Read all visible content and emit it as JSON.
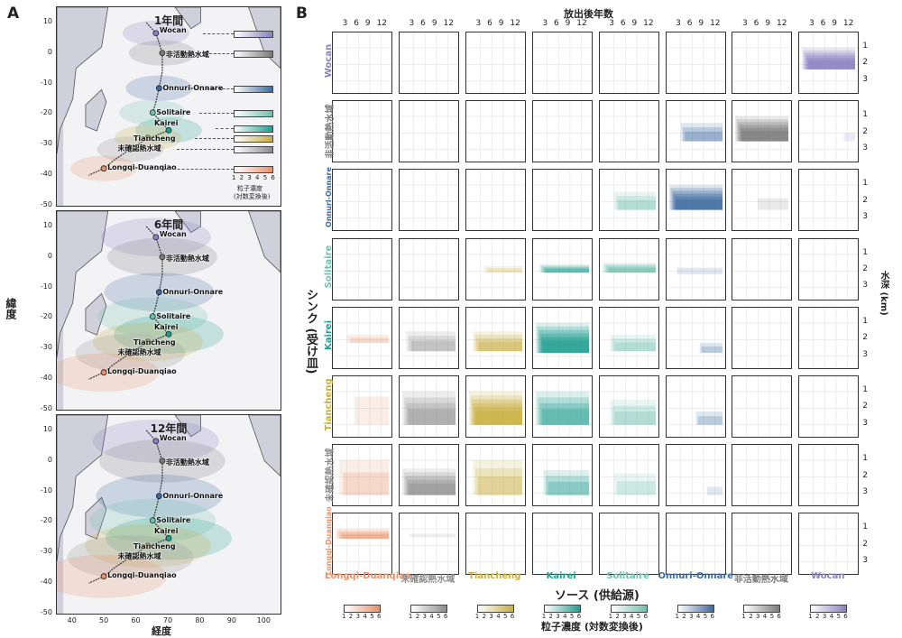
{
  "panel_a_letter": "A",
  "panel_b_letter": "B",
  "maps": [
    {
      "title": "1年間"
    },
    {
      "title": "6年間"
    },
    {
      "title": "12年間"
    }
  ],
  "map_yticks": [
    "10",
    "0",
    "-10",
    "-20",
    "-30",
    "-40",
    "-50"
  ],
  "map_xticks": [
    "40",
    "50",
    "60",
    "70",
    "80",
    "90",
    "100"
  ],
  "map_ylabel": "緯度",
  "map_xlabel": "経度",
  "sites": [
    "Wocan",
    "非活動熱水域",
    "Onnuri-Onnare",
    "Solitaire",
    "Kairei",
    "Tiancheng",
    "未確認熱水域",
    "Longqi-Duanqiao"
  ],
  "map_legend": {
    "ticks": "1 2 3 4 5 6",
    "label_line1": "粒子濃度",
    "label_line2": "(対数変換後)"
  },
  "colors": {
    "Longqi-Duanqiao": "#e8906a",
    "未確認熱水域": "#8c8c8c",
    "Tiancheng": "#c9ae3e",
    "Kairei": "#1f9e8f",
    "Solitaire": "#6fc0ad",
    "Onnuri-Onnare": "#3b6aa0",
    "非活動熱水域": "#7a7a7a",
    "Wocan": "#8a7fc0"
  },
  "panel_b": {
    "top_title": "放出後年数",
    "top_ticks": [
      "3",
      "6",
      "9",
      "12"
    ],
    "depth_title": "水深 (km)",
    "depth_ticks": [
      "1",
      "2",
      "3"
    ],
    "sink_title": "シンク (受け皿)",
    "source_title": "ソース (供給源)",
    "cbar_title": "粒子濃度 (対数変換後)",
    "cbar_ticks": [
      "1",
      "2",
      "3",
      "4",
      "5",
      "6"
    ]
  },
  "chart_data": {
    "type": "heatmap",
    "x_label": "放出後年数",
    "y_label": "水深 (km)",
    "x_ticks": [
      3,
      6,
      9,
      12
    ],
    "y_ticks": [
      1,
      2,
      3
    ],
    "sources": [
      "Longqi-Duanqiao",
      "未確認熱水域",
      "Tiancheng",
      "Kairei",
      "Solitaire",
      "Onnuri-Onnare",
      "非活動熱水域",
      "Wocan"
    ],
    "sinks": [
      "Wocan",
      "非活動熱水域",
      "Onnuri-Onnare",
      "Solitaire",
      "Kairei",
      "Tiancheng",
      "未確認熱水域",
      "Longqi-Duanqiao"
    ],
    "cells": [
      {
        "sink": "Wocan",
        "source": "Wocan",
        "start_year": 0,
        "depth_top_km": 1.0,
        "depth_bottom_km": 2.3,
        "max_conc": 6
      },
      {
        "sink": "非活動熱水域",
        "source": "Onnuri-Onnare",
        "start_year": 3,
        "depth_top_km": 1.4,
        "depth_bottom_km": 2.5,
        "max_conc": 3
      },
      {
        "sink": "非活動熱水域",
        "source": "非活動熱水域",
        "start_year": 0,
        "depth_top_km": 1.0,
        "depth_bottom_km": 2.5,
        "max_conc": 6
      },
      {
        "sink": "非活動熱水域",
        "source": "Wocan",
        "start_year": 11,
        "depth_top_km": 2.0,
        "depth_bottom_km": 2.5,
        "max_conc": 1
      },
      {
        "sink": "Onnuri-Onnare",
        "source": "Solitaire",
        "start_year": 3,
        "depth_top_km": 1.4,
        "depth_bottom_km": 2.5,
        "max_conc": 3
      },
      {
        "sink": "Onnuri-Onnare",
        "source": "Onnuri-Onnare",
        "start_year": 0,
        "depth_top_km": 1.0,
        "depth_bottom_km": 2.5,
        "max_conc": 6
      },
      {
        "sink": "Onnuri-Onnare",
        "source": "非活動熱水域",
        "start_year": 6,
        "depth_top_km": 1.8,
        "depth_bottom_km": 2.5,
        "max_conc": 1
      },
      {
        "sink": "Solitaire",
        "source": "Tiancheng",
        "start_year": 4,
        "depth_top_km": 1.7,
        "depth_bottom_km": 2.1,
        "max_conc": 2
      },
      {
        "sink": "Solitaire",
        "source": "Kairei",
        "start_year": 1,
        "depth_top_km": 1.6,
        "depth_bottom_km": 2.1,
        "max_conc": 4
      },
      {
        "sink": "Solitaire",
        "source": "Solitaire",
        "start_year": 0,
        "depth_top_km": 1.5,
        "depth_bottom_km": 2.1,
        "max_conc": 5
      },
      {
        "sink": "Solitaire",
        "source": "Onnuri-Onnare",
        "start_year": 2,
        "depth_top_km": 1.8,
        "depth_bottom_km": 2.2,
        "max_conc": 1
      },
      {
        "sink": "Kairei",
        "source": "Longqi-Duanqiao",
        "start_year": 3,
        "depth_top_km": 1.7,
        "depth_bottom_km": 2.2,
        "max_conc": 2
      },
      {
        "sink": "Kairei",
        "source": "未確認熱水域",
        "start_year": 1,
        "depth_top_km": 1.5,
        "depth_bottom_km": 2.7,
        "max_conc": 3
      },
      {
        "sink": "Kairei",
        "source": "Tiancheng",
        "start_year": 1,
        "depth_top_km": 1.5,
        "depth_bottom_km": 2.7,
        "max_conc": 4
      },
      {
        "sink": "Kairei",
        "source": "Kairei",
        "start_year": 0,
        "depth_top_km": 1.0,
        "depth_bottom_km": 2.8,
        "max_conc": 6
      },
      {
        "sink": "Kairei",
        "source": "Solitaire",
        "start_year": 2,
        "depth_top_km": 1.7,
        "depth_bottom_km": 2.7,
        "max_conc": 3
      },
      {
        "sink": "Kairei",
        "source": "Onnuri-Onnare",
        "start_year": 8,
        "depth_top_km": 2.2,
        "depth_bottom_km": 2.8,
        "max_conc": 2
      },
      {
        "sink": "Tiancheng",
        "source": "Longqi-Duanqiao",
        "start_year": 5,
        "depth_top_km": 1.3,
        "depth_bottom_km": 3.0,
        "max_conc": 1
      },
      {
        "sink": "Tiancheng",
        "source": "未確認熱水域",
        "start_year": 0,
        "depth_top_km": 1.0,
        "depth_bottom_km": 3.0,
        "max_conc": 4
      },
      {
        "sink": "Tiancheng",
        "source": "Tiancheng",
        "start_year": 0,
        "depth_top_km": 1.0,
        "depth_bottom_km": 3.0,
        "max_conc": 6
      },
      {
        "sink": "Tiancheng",
        "source": "Kairei",
        "start_year": 0,
        "depth_top_km": 1.0,
        "depth_bottom_km": 3.0,
        "max_conc": 4
      },
      {
        "sink": "Tiancheng",
        "source": "Solitaire",
        "start_year": 2,
        "depth_top_km": 1.5,
        "depth_bottom_km": 3.0,
        "max_conc": 3
      },
      {
        "sink": "Tiancheng",
        "source": "Onnuri-Onnare",
        "start_year": 7,
        "depth_top_km": 2.2,
        "depth_bottom_km": 3.0,
        "max_conc": 2
      },
      {
        "sink": "未確認熱水域",
        "source": "Longqi-Duanqiao",
        "start_year": 1,
        "depth_top_km": 1.0,
        "depth_bottom_km": 3.1,
        "max_conc": 2
      },
      {
        "sink": "未確認熱水域",
        "source": "未確認熱水域",
        "start_year": 0,
        "depth_top_km": 1.5,
        "depth_bottom_km": 3.1,
        "max_conc": 5
      },
      {
        "sink": "未確認熱水域",
        "source": "Tiancheng",
        "start_year": 1,
        "depth_top_km": 1.0,
        "depth_bottom_km": 3.1,
        "max_conc": 3
      },
      {
        "sink": "未確認熱水域",
        "source": "Kairei",
        "start_year": 2,
        "depth_top_km": 1.6,
        "depth_bottom_km": 3.1,
        "max_conc": 3
      },
      {
        "sink": "未確認熱水域",
        "source": "Solitaire",
        "start_year": 3,
        "depth_top_km": 1.8,
        "depth_bottom_km": 3.1,
        "max_conc": 2
      },
      {
        "sink": "未確認熱水域",
        "source": "Onnuri-Onnare",
        "start_year": 10,
        "depth_top_km": 2.6,
        "depth_bottom_km": 3.1,
        "max_conc": 1
      },
      {
        "sink": "Longqi-Duanqiao",
        "source": "Longqi-Duanqiao",
        "start_year": 0,
        "depth_top_km": 1.0,
        "depth_bottom_km": 1.6,
        "max_conc": 4
      },
      {
        "sink": "Longqi-Duanqiao",
        "source": "未確認熱水域",
        "start_year": 2,
        "depth_top_km": 1.3,
        "depth_bottom_km": 1.5,
        "max_conc": 1
      }
    ],
    "colorbar_range": [
      1,
      6
    ]
  }
}
